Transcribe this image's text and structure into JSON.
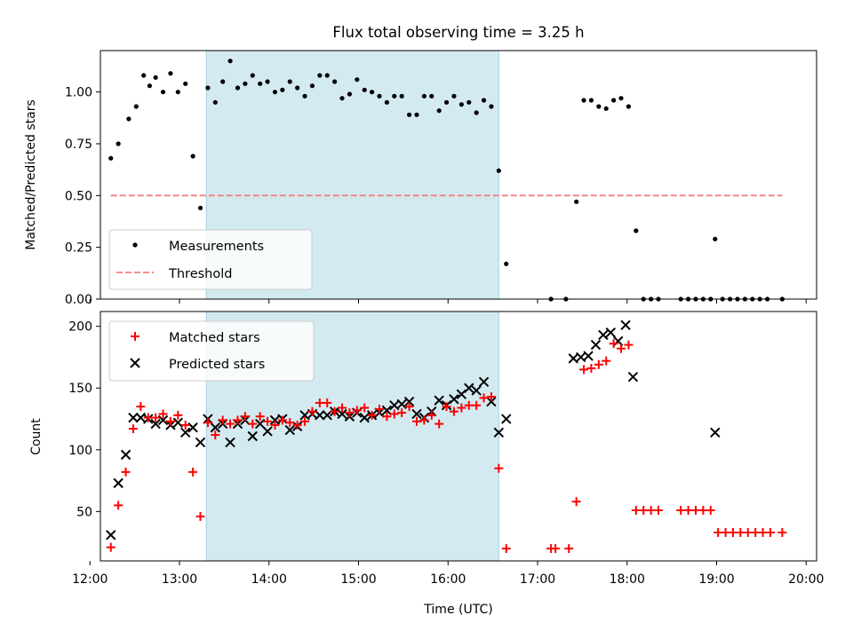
{
  "chart_data": [
    {
      "type": "scatter",
      "title": "Flux total observing time = 3.25 h",
      "xlabel": "",
      "ylabel": "Matched/Predicted stars",
      "xlim": [
        "12:07",
        "20:07"
      ],
      "ylim": [
        0,
        1.2
      ],
      "yticks": [
        0.0,
        0.25,
        0.5,
        0.75,
        1.0
      ],
      "ytick_labels": [
        "0.00",
        "0.25",
        "0.50",
        "0.75",
        "1.00"
      ],
      "grid": false,
      "shaded_interval": [
        "13:18",
        "16:34"
      ],
      "shade_color": "#d4eaf1",
      "legend": {
        "position": "lower-left",
        "entries": [
          {
            "label": "Measurements",
            "marker": "dot",
            "color": "#000000"
          },
          {
            "label": "Threshold",
            "marker": "dashed-line",
            "color": "#f08080"
          }
        ]
      },
      "series": [
        {
          "name": "Measurements",
          "marker": "dot",
          "color": "#000000",
          "x": [
            "12:14",
            "12:19",
            "12:26",
            "12:31",
            "12:36",
            "12:40",
            "12:44",
            "12:49",
            "12:54",
            "12:59",
            "13:04",
            "13:09",
            "13:14",
            "13:19",
            "13:24",
            "13:29",
            "13:34",
            "13:39",
            "13:44",
            "13:49",
            "13:54",
            "13:59",
            "14:04",
            "14:09",
            "14:14",
            "14:19",
            "14:24",
            "14:29",
            "14:34",
            "14:39",
            "14:44",
            "14:49",
            "14:54",
            "14:59",
            "15:04",
            "15:09",
            "15:14",
            "15:19",
            "15:24",
            "15:29",
            "15:34",
            "15:39",
            "15:44",
            "15:49",
            "15:54",
            "15:59",
            "16:04",
            "16:09",
            "16:14",
            "16:19",
            "16:24",
            "16:29",
            "16:34",
            "16:39",
            "17:09",
            "17:19",
            "17:26",
            "17:31",
            "17:36",
            "17:41",
            "17:46",
            "17:51",
            "17:56",
            "18:01",
            "18:06",
            "18:11",
            "18:16",
            "18:21",
            "18:36",
            "18:41",
            "18:46",
            "18:51",
            "18:56",
            "18:59",
            "19:04",
            "19:09",
            "19:14",
            "19:19",
            "19:24",
            "19:29",
            "19:34",
            "19:44"
          ],
          "y": [
            0.68,
            0.75,
            0.87,
            0.93,
            1.08,
            1.03,
            1.07,
            1.0,
            1.09,
            1.0,
            1.04,
            0.69,
            0.44,
            1.02,
            0.95,
            1.05,
            1.15,
            1.02,
            1.04,
            1.08,
            1.04,
            1.05,
            1.0,
            1.01,
            1.05,
            1.02,
            0.98,
            1.03,
            1.08,
            1.08,
            1.05,
            0.97,
            0.99,
            1.06,
            1.01,
            1.0,
            0.98,
            0.95,
            0.98,
            0.98,
            0.89,
            0.89,
            0.98,
            0.98,
            0.91,
            0.95,
            0.98,
            0.94,
            0.95,
            0.9,
            0.96,
            0.93,
            0.62,
            0.17,
            0.0,
            0.0,
            0.47,
            0.96,
            0.96,
            0.93,
            0.92,
            0.96,
            0.97,
            0.93,
            0.33,
            0.0,
            0.0,
            0.0,
            0.0,
            0.0,
            0.0,
            0.0,
            0.0,
            0.29,
            0.0,
            0.0,
            0.0,
            0.0,
            0.0,
            0.0,
            0.0,
            0.0
          ]
        },
        {
          "name": "Threshold",
          "type": "line",
          "style": "dashed",
          "color": "#f08080",
          "x": [
            "12:14",
            "19:44"
          ],
          "y": [
            0.5,
            0.5
          ]
        }
      ]
    },
    {
      "type": "scatter",
      "title": "",
      "xlabel": "Time (UTC)",
      "ylabel": "Count",
      "xlim": [
        "12:07",
        "20:07"
      ],
      "ylim": [
        10,
        212
      ],
      "xticks": [
        "12:00",
        "13:00",
        "14:00",
        "15:00",
        "16:00",
        "17:00",
        "18:00",
        "19:00",
        "20:00"
      ],
      "yticks": [
        50,
        100,
        150,
        200
      ],
      "grid": false,
      "shaded_interval": [
        "13:18",
        "16:34"
      ],
      "shade_color": "#d4eaf1",
      "legend": {
        "position": "upper-left",
        "entries": [
          {
            "label": "Matched stars",
            "marker": "plus",
            "color": "#ff0000"
          },
          {
            "label": "Predicted stars",
            "marker": "x",
            "color": "#000000"
          }
        ]
      },
      "series": [
        {
          "name": "Matched stars",
          "marker": "plus",
          "color": "#ff0000",
          "x": [
            "12:14",
            "12:19",
            "12:24",
            "12:29",
            "12:34",
            "12:39",
            "12:44",
            "12:49",
            "12:54",
            "12:59",
            "13:04",
            "13:09",
            "13:14",
            "13:19",
            "13:24",
            "13:29",
            "13:34",
            "13:39",
            "13:44",
            "13:49",
            "13:54",
            "13:59",
            "14:04",
            "14:09",
            "14:14",
            "14:19",
            "14:24",
            "14:29",
            "14:34",
            "14:39",
            "14:44",
            "14:49",
            "14:54",
            "14:59",
            "15:04",
            "15:09",
            "15:14",
            "15:19",
            "15:24",
            "15:29",
            "15:34",
            "15:39",
            "15:44",
            "15:49",
            "15:54",
            "15:59",
            "16:04",
            "16:09",
            "16:14",
            "16:19",
            "16:24",
            "16:29",
            "16:34",
            "16:39",
            "17:09",
            "17:12",
            "17:21",
            "17:26",
            "17:31",
            "17:36",
            "17:41",
            "17:46",
            "17:51",
            "17:56",
            "18:01",
            "18:06",
            "18:11",
            "18:16",
            "18:21",
            "18:36",
            "18:41",
            "18:46",
            "18:51",
            "18:56",
            "19:01",
            "19:06",
            "19:11",
            "19:16",
            "19:21",
            "19:26",
            "19:31",
            "19:36",
            "19:44"
          ],
          "y": [
            21,
            55,
            82,
            117,
            135,
            126,
            126,
            129,
            123,
            128,
            120,
            82,
            46,
            122,
            112,
            124,
            121,
            124,
            127,
            121,
            127,
            123,
            120,
            124,
            122,
            120,
            123,
            131,
            138,
            138,
            131,
            134,
            130,
            132,
            134,
            128,
            133,
            127,
            129,
            130,
            135,
            123,
            124,
            128,
            121,
            135,
            131,
            134,
            136,
            136,
            142,
            143,
            85,
            20,
            20,
            20,
            20,
            58,
            165,
            166,
            169,
            172,
            186,
            182,
            185,
            51,
            51,
            51,
            51,
            51,
            51,
            51,
            51,
            51,
            33,
            33,
            33,
            33,
            33,
            33,
            33,
            33,
            33
          ]
        },
        {
          "name": "Predicted stars",
          "marker": "x",
          "color": "#000000",
          "x": [
            "12:14",
            "12:19",
            "12:24",
            "12:29",
            "12:34",
            "12:39",
            "12:44",
            "12:49",
            "12:54",
            "12:59",
            "13:04",
            "13:09",
            "13:14",
            "13:19",
            "13:24",
            "13:29",
            "13:34",
            "13:39",
            "13:44",
            "13:49",
            "13:54",
            "13:59",
            "14:04",
            "14:09",
            "14:14",
            "14:19",
            "14:24",
            "14:29",
            "14:34",
            "14:39",
            "14:44",
            "14:49",
            "14:54",
            "14:59",
            "15:04",
            "15:09",
            "15:14",
            "15:19",
            "15:24",
            "15:29",
            "15:34",
            "15:39",
            "15:44",
            "15:49",
            "15:54",
            "15:59",
            "16:04",
            "16:09",
            "16:14",
            "16:19",
            "16:24",
            "16:29",
            "16:34",
            "16:39",
            "17:24",
            "17:29",
            "17:34",
            "17:39",
            "17:44",
            "17:49",
            "17:54",
            "17:59",
            "18:04",
            "18:59"
          ],
          "y": [
            31,
            73,
            96,
            126,
            126,
            125,
            121,
            124,
            120,
            122,
            114,
            118,
            106,
            125,
            118,
            121,
            106,
            121,
            124,
            111,
            121,
            115,
            124,
            125,
            116,
            119,
            128,
            129,
            128,
            128,
            131,
            129,
            127,
            130,
            126,
            128,
            130,
            132,
            136,
            137,
            139,
            129,
            126,
            131,
            140,
            136,
            141,
            145,
            150,
            148,
            155,
            139,
            114,
            125,
            174,
            175,
            176,
            185,
            193,
            195,
            188,
            201,
            159,
            114
          ]
        }
      ]
    }
  ]
}
